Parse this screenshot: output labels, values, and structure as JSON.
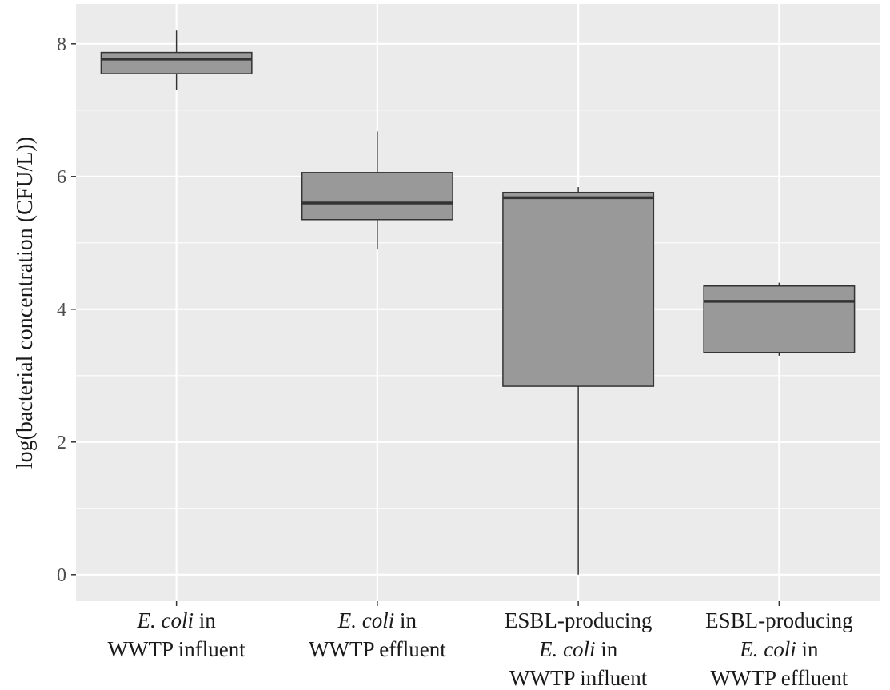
{
  "chart_data": {
    "type": "boxplot",
    "ylabel": "log(bacterial concentration (CFU/L))",
    "ylim": [
      -0.4,
      8.6
    ],
    "yticks": [
      0,
      2,
      4,
      6,
      8
    ],
    "ytick_labels": [
      "0",
      "2",
      "4",
      "6",
      "8"
    ],
    "grid": true,
    "panel_background": "#ebebeb",
    "grid_color": "#ffffff",
    "box_fill": "#999999",
    "box_stroke": "#333333",
    "categories": [
      {
        "label_lines": [
          [
            {
              "text": "E. coli",
              "italic": true
            },
            {
              "text": " in",
              "italic": false
            }
          ],
          [
            {
              "text": "WWTP influent",
              "italic": false
            }
          ]
        ],
        "stats": {
          "min": 7.3,
          "q1": 7.55,
          "median": 7.77,
          "q3": 7.87,
          "max": 8.2
        }
      },
      {
        "label_lines": [
          [
            {
              "text": "E. coli",
              "italic": true
            },
            {
              "text": " in",
              "italic": false
            }
          ],
          [
            {
              "text": "WWTP effluent",
              "italic": false
            }
          ]
        ],
        "stats": {
          "min": 4.9,
          "q1": 5.35,
          "median": 5.6,
          "q3": 6.06,
          "max": 6.68
        }
      },
      {
        "label_lines": [
          [
            {
              "text": "ESBL-producing",
              "italic": false
            }
          ],
          [
            {
              "text": "E. coli",
              "italic": true
            },
            {
              "text": " in",
              "italic": false
            }
          ],
          [
            {
              "text": "WWTP influent",
              "italic": false
            }
          ]
        ],
        "stats": {
          "min": 0.0,
          "q1": 2.84,
          "median": 5.68,
          "q3": 5.76,
          "max": 5.84
        }
      },
      {
        "label_lines": [
          [
            {
              "text": "ESBL-producing",
              "italic": false
            }
          ],
          [
            {
              "text": "E. coli",
              "italic": true
            },
            {
              "text": " in",
              "italic": false
            }
          ],
          [
            {
              "text": "WWTP effluent",
              "italic": false
            }
          ]
        ],
        "stats": {
          "min": 3.3,
          "q1": 3.35,
          "median": 4.12,
          "q3": 4.35,
          "max": 4.4
        }
      }
    ]
  }
}
